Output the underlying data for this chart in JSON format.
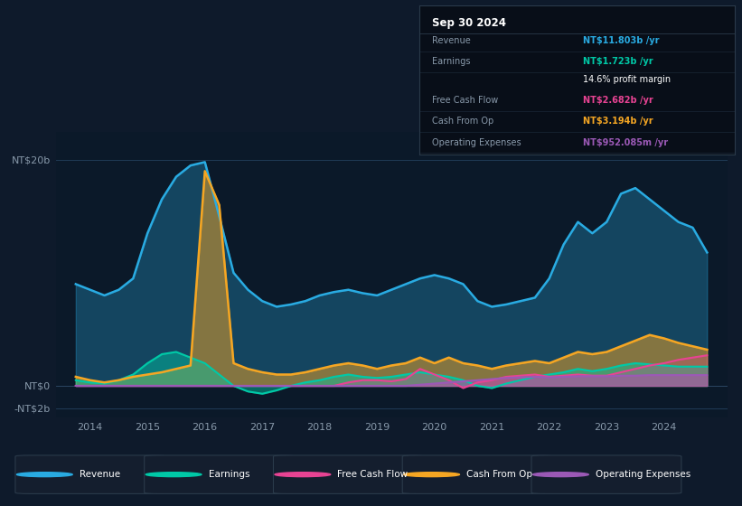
{
  "bg_color": "#0e1a2b",
  "plot_bg_color": "#0b1929",
  "grid_color": "#1e3a5a",
  "title": "Sep 30 2024",
  "ylim": [
    -2.8,
    22.5
  ],
  "xlim_start": 2013.4,
  "xlim_end": 2025.1,
  "colors": {
    "revenue": "#29abe2",
    "earnings": "#00c9a7",
    "free_cash_flow": "#e84393",
    "cash_from_op": "#f5a623",
    "operating_expenses": "#9b59b6"
  },
  "legend": [
    {
      "label": "Revenue",
      "color": "#29abe2"
    },
    {
      "label": "Earnings",
      "color": "#00c9a7"
    },
    {
      "label": "Free Cash Flow",
      "color": "#e84393"
    },
    {
      "label": "Cash From Op",
      "color": "#f5a623"
    },
    {
      "label": "Operating Expenses",
      "color": "#9b59b6"
    }
  ],
  "table_rows": [
    {
      "label": "Revenue",
      "value": "NT$11.803b /yr",
      "vcolor": "#29abe2"
    },
    {
      "label": "Earnings",
      "value": "NT$1.723b /yr",
      "vcolor": "#00c9a7"
    },
    {
      "label": "",
      "value": "14.6% profit margin",
      "vcolor": "#ffffff"
    },
    {
      "label": "Free Cash Flow",
      "value": "NT$2.682b /yr",
      "vcolor": "#e84393"
    },
    {
      "label": "Cash From Op",
      "value": "NT$3.194b /yr",
      "vcolor": "#f5a623"
    },
    {
      "label": "Operating Expenses",
      "value": "NT$952.085m /yr",
      "vcolor": "#9b59b6"
    }
  ],
  "x": [
    2013.75,
    2014.0,
    2014.25,
    2014.5,
    2014.75,
    2015.0,
    2015.25,
    2015.5,
    2015.75,
    2016.0,
    2016.25,
    2016.5,
    2016.75,
    2017.0,
    2017.25,
    2017.5,
    2017.75,
    2018.0,
    2018.25,
    2018.5,
    2018.75,
    2019.0,
    2019.25,
    2019.5,
    2019.75,
    2020.0,
    2020.25,
    2020.5,
    2020.75,
    2021.0,
    2021.25,
    2021.5,
    2021.75,
    2022.0,
    2022.25,
    2022.5,
    2022.75,
    2023.0,
    2023.25,
    2023.5,
    2023.75,
    2024.0,
    2024.25,
    2024.5,
    2024.75
  ],
  "revenue": [
    9.0,
    8.5,
    8.0,
    8.5,
    9.5,
    13.5,
    16.5,
    18.5,
    19.5,
    19.8,
    15.0,
    10.0,
    8.5,
    7.5,
    7.0,
    7.2,
    7.5,
    8.0,
    8.3,
    8.5,
    8.2,
    8.0,
    8.5,
    9.0,
    9.5,
    9.8,
    9.5,
    9.0,
    7.5,
    7.0,
    7.2,
    7.5,
    7.8,
    9.5,
    12.5,
    14.5,
    13.5,
    14.5,
    17.0,
    17.5,
    16.5,
    15.5,
    14.5,
    14.0,
    11.8
  ],
  "earnings": [
    0.5,
    0.3,
    0.2,
    0.5,
    1.0,
    2.0,
    2.8,
    3.0,
    2.5,
    2.0,
    1.0,
    0.0,
    -0.5,
    -0.7,
    -0.4,
    0.0,
    0.3,
    0.5,
    0.8,
    1.0,
    0.8,
    0.7,
    0.8,
    1.0,
    1.2,
    1.0,
    0.8,
    0.5,
    0.0,
    -0.2,
    0.2,
    0.5,
    0.8,
    1.0,
    1.2,
    1.5,
    1.3,
    1.5,
    1.8,
    2.0,
    1.9,
    1.8,
    1.7,
    1.7,
    1.7
  ],
  "free_cash_flow": [
    0.0,
    0.0,
    0.0,
    0.0,
    0.0,
    0.0,
    0.0,
    0.0,
    0.0,
    0.0,
    0.0,
    0.0,
    0.0,
    0.0,
    0.0,
    0.0,
    0.0,
    0.0,
    0.0,
    0.3,
    0.5,
    0.5,
    0.4,
    0.6,
    1.5,
    1.0,
    0.5,
    -0.2,
    0.3,
    0.5,
    0.8,
    0.9,
    1.0,
    0.8,
    0.9,
    1.0,
    0.9,
    0.9,
    1.2,
    1.5,
    1.8,
    2.0,
    2.3,
    2.5,
    2.7
  ],
  "cash_from_op": [
    0.8,
    0.5,
    0.3,
    0.5,
    0.8,
    1.0,
    1.2,
    1.5,
    1.8,
    19.0,
    16.0,
    2.0,
    1.5,
    1.2,
    1.0,
    1.0,
    1.2,
    1.5,
    1.8,
    2.0,
    1.8,
    1.5,
    1.8,
    2.0,
    2.5,
    2.0,
    2.5,
    2.0,
    1.8,
    1.5,
    1.8,
    2.0,
    2.2,
    2.0,
    2.5,
    3.0,
    2.8,
    3.0,
    3.5,
    4.0,
    4.5,
    4.2,
    3.8,
    3.5,
    3.2
  ],
  "operating_expenses": [
    0.0,
    0.0,
    0.0,
    0.0,
    0.0,
    0.0,
    0.0,
    0.0,
    0.0,
    0.0,
    0.0,
    0.0,
    0.0,
    0.0,
    0.0,
    0.0,
    0.0,
    0.0,
    0.0,
    0.0,
    0.0,
    0.0,
    0.0,
    0.0,
    0.1,
    0.2,
    0.3,
    0.4,
    0.5,
    0.6,
    0.7,
    0.75,
    0.8,
    0.75,
    0.8,
    0.85,
    0.85,
    0.85,
    0.9,
    0.9,
    0.95,
    0.95,
    0.95,
    0.95,
    0.95
  ]
}
